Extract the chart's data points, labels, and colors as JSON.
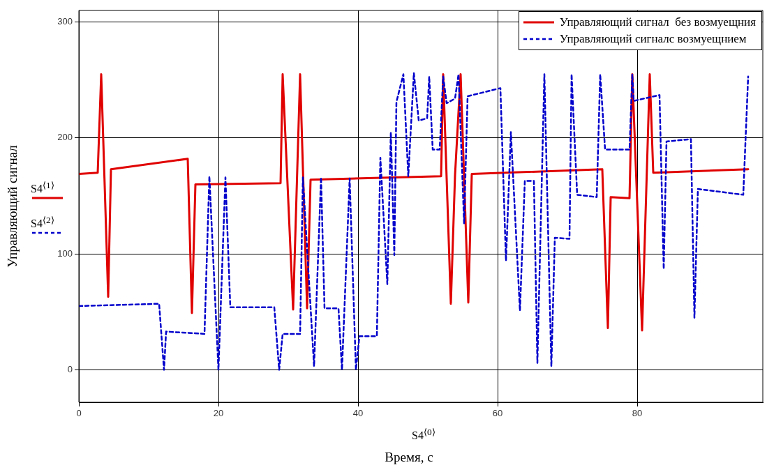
{
  "chart_data": {
    "type": "line",
    "xlabel": "Время, с",
    "ylabel": "Управляющий сигнал",
    "annotations": [
      "S4$^{⟨1⟩}$",
      "S4$^{⟨2⟩}$",
      "S4$^{⟨0⟩}$"
    ],
    "xlim": [
      0,
      98
    ],
    "xticks": [
      0,
      20,
      40,
      60,
      80
    ],
    "ylim": [
      -28,
      310
    ],
    "yticks": [
      0,
      100,
      200,
      300
    ],
    "grid": true,
    "legend": "top right",
    "marker": "none",
    "series": [
      {
        "name": "Управляющий сигнал  без возмуещния",
        "color": "#e00000",
        "line_style": "solid",
        "x": [
          0,
          2.7,
          3.2,
          4.2,
          4.6,
          15.6,
          16.2,
          16.7,
          28.9,
          29.2,
          30.7,
          31.7,
          32.7,
          33.2,
          51.9,
          52.2,
          53.3,
          53.9,
          54.7,
          55.8,
          56.3,
          75.0,
          75.8,
          76.2,
          78.9,
          79.3,
          80.7,
          81.8,
          82.3,
          95.9
        ],
        "values": [
          169,
          170,
          255,
          63,
          173,
          182,
          49,
          160,
          161,
          255,
          52,
          255,
          53,
          164,
          167,
          255,
          57,
          168,
          255,
          58,
          169,
          173,
          36,
          149,
          148,
          255,
          34,
          255,
          170,
          173
        ]
      },
      {
        "name": "Управляющий сигналс возмуещнием",
        "color": "#0000cc",
        "line_style": "dashed",
        "x": [
          0,
          11.5,
          12.2,
          12.5,
          18,
          18.7,
          20,
          21,
          21.7,
          28,
          28.7,
          29.2,
          31.7,
          32.1,
          33.7,
          34.7,
          35.2,
          37.2,
          37.7,
          38.8,
          39.7,
          40.2,
          42.7,
          43.2,
          44.2,
          44.7,
          45.2,
          45.5,
          46.5,
          47.2,
          48,
          48.7,
          49.9,
          50.2,
          50.7,
          51.7,
          52.2,
          52.7,
          53.9,
          54.4,
          55.2,
          55.7,
          60.4,
          61.2,
          61.9,
          63.2,
          63.9,
          65.2,
          65.7,
          66.7,
          67.7,
          68.2,
          70.3,
          70.6,
          71.4,
          74.2,
          74.7,
          75.4,
          78.9,
          79.3,
          79.5,
          83.2,
          83.8,
          84.2,
          87.7,
          88.2,
          88.7,
          95.2,
          95.9
        ],
        "values": [
          55,
          57,
          0,
          33,
          31,
          167,
          0,
          166,
          54,
          54,
          0,
          31,
          31,
          166,
          3,
          166,
          53,
          53,
          0,
          165,
          0,
          29,
          29,
          183,
          74,
          205,
          99,
          231,
          255,
          167,
          256,
          215,
          217,
          253,
          190,
          190,
          253,
          230,
          234,
          255,
          126,
          236,
          243,
          94,
          205,
          51,
          163,
          163,
          6,
          255,
          3,
          114,
          113,
          255,
          151,
          149,
          255,
          190,
          190,
          255,
          232,
          237,
          87,
          197,
          199,
          45,
          156,
          151,
          253
        ]
      }
    ]
  }
}
